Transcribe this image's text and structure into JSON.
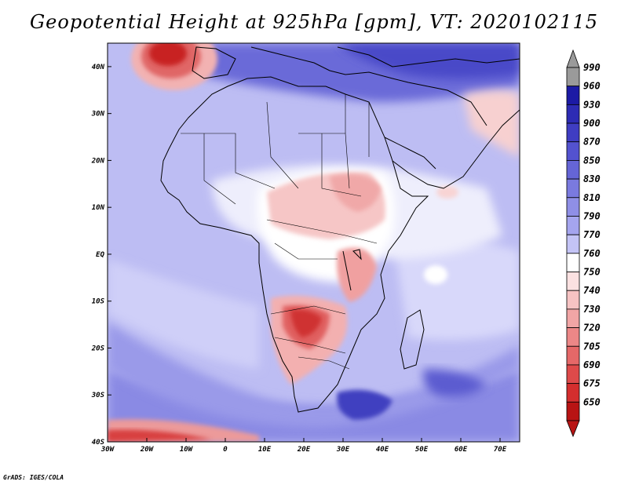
{
  "title": "Geopotential Height at 925hPa [gpm], VT: 2020102115",
  "credit": "GrADS: IGES/COLA",
  "axes": {
    "x_ticks": [
      "30W",
      "20W",
      "10W",
      "0",
      "10E",
      "20E",
      "30E",
      "40E",
      "50E",
      "60E",
      "70E"
    ],
    "y_ticks": [
      "40N",
      "30N",
      "20N",
      "10N",
      "EQ",
      "10S",
      "20S",
      "30S",
      "40S"
    ],
    "lon_range": [
      -30,
      75
    ],
    "lat_range": [
      -40,
      45
    ]
  },
  "colorbar": {
    "labels": [
      "990",
      "960",
      "930",
      "900",
      "870",
      "850",
      "830",
      "810",
      "790",
      "770",
      "760",
      "750",
      "740",
      "730",
      "720",
      "705",
      "690",
      "675",
      "650"
    ],
    "colors": [
      "#9a9a9a",
      "#1c1aa5",
      "#2d2bb4",
      "#3f3dc2",
      "#5352cf",
      "#6565d6",
      "#7a7adf",
      "#8f8fe6",
      "#a5a5ee",
      "#c4c4f6",
      "#ffffff",
      "#fbe1e1",
      "#f6c3c3",
      "#f1a5a5",
      "#ec8787",
      "#e56868",
      "#de4a4a",
      "#d42e2e",
      "#b81414"
    ]
  },
  "colors": {
    "ocean_base": "#b9b9f2",
    "deep_low": "#c82020",
    "land_line": "#000000"
  }
}
